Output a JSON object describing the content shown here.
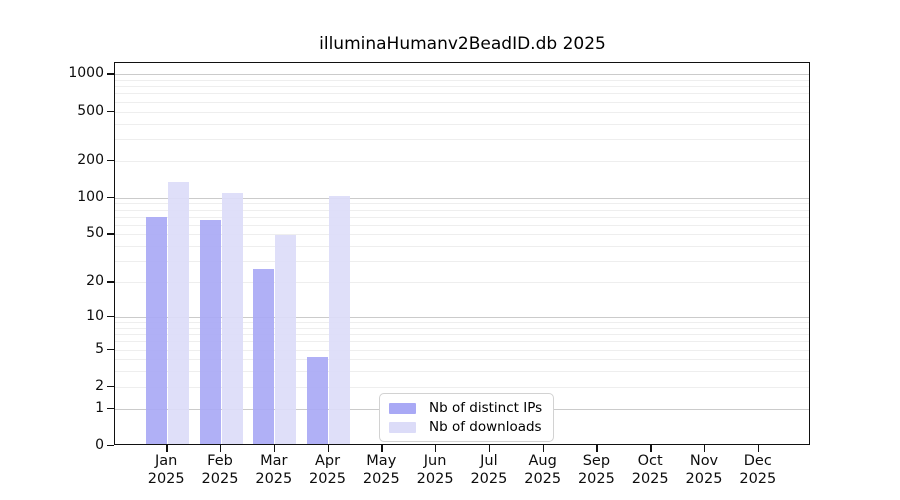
{
  "chart_data": {
    "type": "bar",
    "title": "illuminaHumanv2BeadID.db 2025",
    "year": "2025",
    "categories": [
      "Jan",
      "Feb",
      "Mar",
      "Apr",
      "May",
      "Jun",
      "Jul",
      "Aug",
      "Sep",
      "Oct",
      "Nov",
      "Dec"
    ],
    "series": [
      {
        "name": "Nb of distinct IPs",
        "color": "#a9a9f5",
        "values": [
          67,
          63,
          25,
          4,
          null,
          null,
          null,
          null,
          null,
          null,
          null,
          null
        ]
      },
      {
        "name": "Nb of downloads",
        "color": "#dcdcf8",
        "values": [
          130,
          105,
          48,
          100,
          null,
          null,
          null,
          null,
          null,
          null,
          null,
          null
        ]
      }
    ],
    "xlabel": "",
    "ylabel": "",
    "y_scale": "log1p",
    "y_ticks": [
      0,
      1,
      2,
      5,
      10,
      20,
      50,
      100,
      200,
      500,
      1000
    ],
    "y_major_gridlines": [
      1,
      10,
      100,
      1000
    ],
    "ylim": [
      0,
      1233
    ],
    "grid": "on",
    "legend_position": "inside-bottom-center",
    "colors": {
      "major_grid": "#cbcbcb",
      "minor_grid": "#eeeeee",
      "axis": "#111111",
      "background": "#ffffff"
    }
  }
}
